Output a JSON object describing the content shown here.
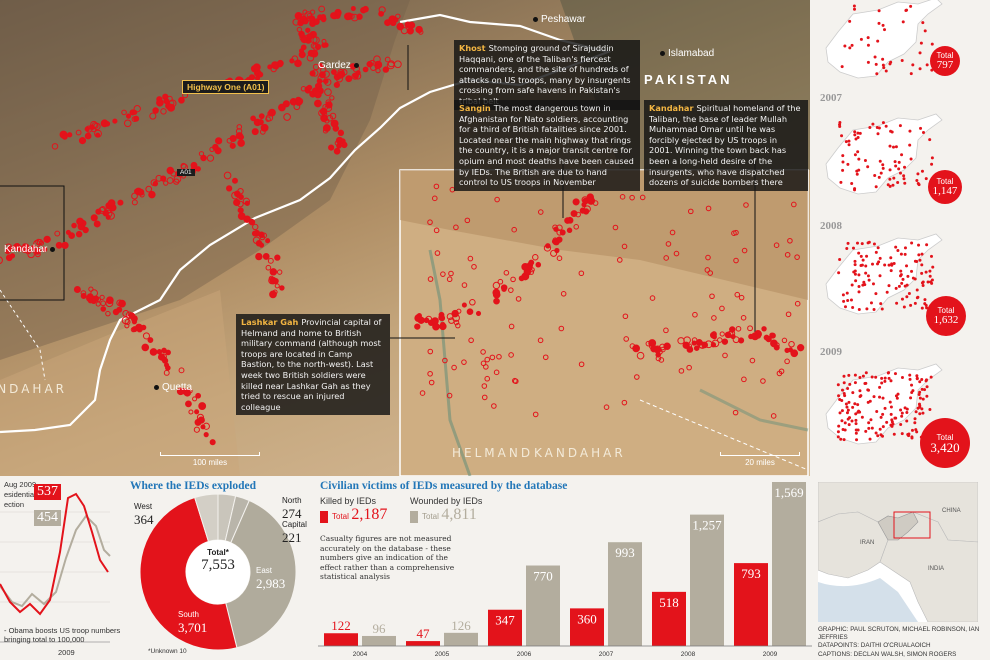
{
  "map": {
    "cities": {
      "peshawar": "Peshawar",
      "islamabad": "Islamabad",
      "gardez": "Gardez",
      "kandahar": "Kandahar",
      "quetta": "Quetta"
    },
    "country_label": "PAKISTAN",
    "regions": {
      "helmand": "HELMAND",
      "kandahar_inset": "KANDAHAR",
      "kandahar_main": "ANDAHAR"
    },
    "road_tag": "Highway One (A01)",
    "a01_tag": "A01",
    "scale_main": "100 miles",
    "scale_inset": "20 miles",
    "callouts": {
      "khost": {
        "keyword": "Khost",
        "text": "Stomping ground of Sirajuddin Haqqani, one of the Taliban's fiercest commanders, and the site of hundreds of attacks on US troops, many by insurgents crossing from safe havens in Pakistan's tribal belt"
      },
      "sangin": {
        "keyword": "Sangin",
        "text": "The most dangerous town in Afghanistan for Nato soldiers, accounting for a third of British fatalities since 2001. Located near the main highway that rings the country, it is a major transit centre for opium and most deaths have been caused by IEDs. The British are due to hand control to US troops in November"
      },
      "kandahar": {
        "keyword": "Kandahar",
        "text": "Spiritual homeland of the Taliban, the base of leader Mullah Muhammad Omar until he was forcibly ejected by US troops in 2001. Winning the town back has been a long-held desire of the insurgents, who have dispatched dozens of suicide bombers there"
      },
      "lashkar": {
        "keyword": "Lashkar Gah",
        "text": "Provincial capital of Helmand and home to British military command (although most troops are located in Camp Bastion, to the north-west). Last week two British soldiers were killed near Lashkar Gah as they tried to rescue an injured colleague"
      }
    },
    "colors": {
      "ied": "#e3131b",
      "border": "#ffffff",
      "callout_keyword": "#f2b542"
    }
  },
  "yearly": [
    {
      "year": "",
      "total_label": "Total",
      "total": "797"
    },
    {
      "year": "2007",
      "total_label": "Total",
      "total": "1,147"
    },
    {
      "year": "2008",
      "total_label": "Total",
      "total": "1,632"
    },
    {
      "year": "2009",
      "total_label": "Total",
      "total": "3,420"
    }
  ],
  "line_fragment": {
    "header_lines": [
      "Aug 2009",
      "esidential",
      "ection"
    ],
    "badge_red": "537",
    "badge_grey": "454",
    "footer_lines": [
      "- Obama boosts US troop numbers",
      "bringing total to 100,000"
    ],
    "x_label": "2009"
  },
  "donut": {
    "title": "Where the IEDs exploded",
    "center_label": "Total*",
    "center_value": "7,553",
    "footnote": "*Unknown 10",
    "segments": [
      {
        "name": "North",
        "value": 274,
        "label": "274",
        "color": "#c9c5bb"
      },
      {
        "name": "Capital",
        "value": 221,
        "label": "221",
        "color": "#b9b5aa"
      },
      {
        "name": "East",
        "value": 2983,
        "label": "2,983",
        "color": "#b0ab9c"
      },
      {
        "name": "South",
        "value": 3701,
        "label": "3,701",
        "color": "#e3131b"
      },
      {
        "name": "West",
        "value": 364,
        "label": "364",
        "color": "#d3cfc6"
      }
    ]
  },
  "bars": {
    "title": "Civilian victims of IEDs measured by the database",
    "killed_label": "Killed by IEDs",
    "killed_total_label": "Total",
    "killed_total": "2,187",
    "wounded_label": "Wounded by IEDs",
    "wounded_total_label": "Total",
    "wounded_total": "4,811",
    "note": "Casualty figures are not measured accurately on the database - these numbers give an indication of the effect rather than a comprehensive statistical analysis",
    "colors": {
      "killed": "#e3131b",
      "wounded": "#b3ad9e"
    }
  },
  "chart_data": {
    "type": "bar",
    "categories": [
      "2004",
      "2005",
      "2006",
      "2007",
      "2008",
      "2009"
    ],
    "series": [
      {
        "name": "Killed by IEDs",
        "values": [
          122,
          47,
          347,
          360,
          518,
          793
        ]
      },
      {
        "name": "Wounded by IEDs",
        "values": [
          96,
          126,
          770,
          993,
          1257,
          1569
        ]
      }
    ],
    "ylim": [
      0,
      1569
    ]
  },
  "locator": {
    "labels": {
      "china": "CHINA",
      "iran": "IRAN",
      "india": "INDIA"
    }
  },
  "credits": [
    "GRAPHIC: PAUL SCRUTON, MICHAEL ROBINSON, IAN JEFFRIES",
    "DATAPOINTS: DAITHI O'CRUALAOICH",
    "CAPTIONS: DECLAN WALSH, SIMON ROGERS"
  ]
}
